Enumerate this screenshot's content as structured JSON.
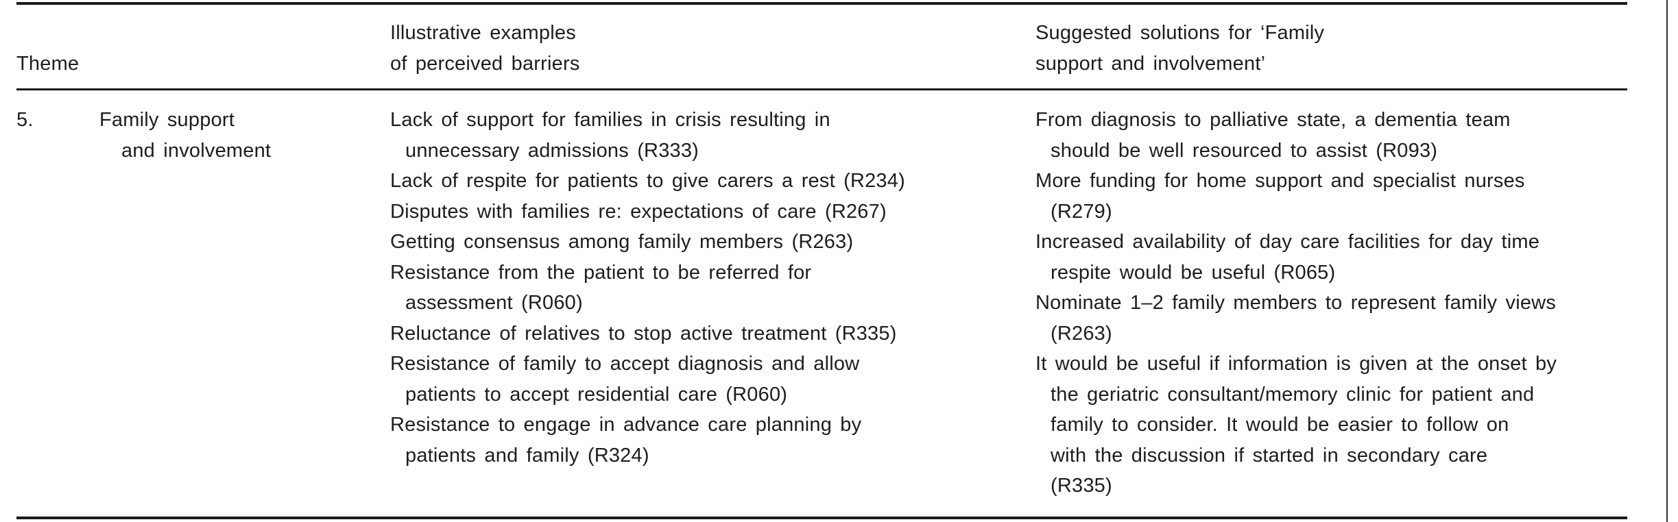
{
  "table": {
    "headers": {
      "theme": "Theme",
      "barriers_lines": [
        "Illustrative examples",
        "of perceived barriers"
      ],
      "solutions_lines": [
        "Suggested solutions for ‘Family",
        "support and involvement’"
      ]
    },
    "row": {
      "number": "5.",
      "theme_lines": [
        "Family support",
        "and involvement"
      ],
      "barriers": [
        [
          "Lack of support for families in crisis resulting in",
          "unnecessary admissions (R333)"
        ],
        [
          "Lack of respite for patients to give carers a rest (R234)"
        ],
        [
          "Disputes with families re: expectations of care (R267)"
        ],
        [
          "Getting consensus among family members (R263)"
        ],
        [
          "Resistance from the patient to be referred for",
          "assessment (R060)"
        ],
        [
          "Reluctance of relatives to stop active treatment (R335)"
        ],
        [
          "Resistance of family to accept diagnosis and allow",
          "patients to accept residential care (R060)"
        ],
        [
          "Resistance to engage in advance care planning by",
          "patients and family (R324)"
        ]
      ],
      "solutions": [
        [
          "From diagnosis to palliative state, a dementia team",
          "should be well resourced to assist (R093)"
        ],
        [
          "More funding for home support and specialist nurses",
          "(R279)"
        ],
        [
          "Increased availability of day care facilities for day time",
          "respite would be useful (R065)"
        ],
        [
          "Nominate 1–2 family members to represent family views",
          "(R263)"
        ],
        [
          "It would be useful if information is given at the onset by",
          "the geriatric consultant/memory clinic for patient and",
          "family to consider. It would be easier to follow on",
          "with the discussion if started in secondary care",
          "(R335)"
        ]
      ]
    },
    "colors": {
      "rule": "#1a1a1a",
      "text": "#1d1d1d",
      "page_edge": "#323232"
    }
  }
}
